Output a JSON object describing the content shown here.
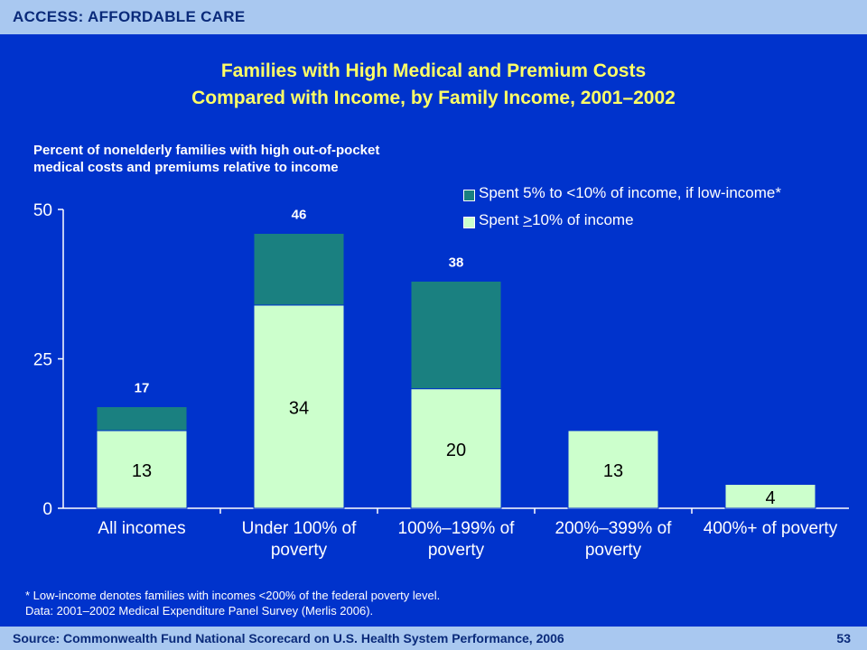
{
  "header": {
    "section_label": "ACCESS: AFFORDABLE CARE"
  },
  "title_line1": "Families with High Medical and Premium Costs",
  "title_line2": "Compared with Income, by Family Income, 2001–2002",
  "subtitle_line1": "Percent of nonelderly families with high out-of-pocket",
  "subtitle_line2": "medical costs and premiums relative to income",
  "legend": {
    "item1": "Spent 5% to <10% of income, if low-income*",
    "item2_prefix": "Spent ",
    "item2_underlined": ">",
    "item2_suffix": "10% of income"
  },
  "footnote_line1": "* Low-income denotes families with incomes <200% of the federal poverty level.",
  "footnote_line2": "Data: 2001–2002 Medical Expenditure Panel Survey (Merlis 2006).",
  "footer": {
    "source": "Source: Commonwealth Fund National Scorecard on U.S. Health System Performance, 2006",
    "page_number": "53"
  },
  "colors": {
    "background": "#0033cc",
    "bar_bottom": "#ccffcc",
    "bar_top": "#1a8080",
    "title": "#ffff66",
    "bar_bar_border": "#0033cc"
  },
  "chart_data": {
    "type": "bar",
    "stacked": true,
    "categories": [
      [
        "All incomes"
      ],
      [
        "Under 100% of",
        "poverty"
      ],
      [
        "100%–199% of",
        "poverty"
      ],
      [
        "200%–399% of",
        "poverty"
      ],
      [
        "400%+ of poverty"
      ]
    ],
    "series": [
      {
        "name": "Spent >10% of income",
        "values": [
          13,
          34,
          20,
          13,
          4
        ],
        "color": "#ccffcc"
      },
      {
        "name": "Spent 5% to <10% of income, if low-income*",
        "values": [
          4,
          12,
          18,
          null,
          null
        ],
        "color": "#1a8080"
      }
    ],
    "bottom_labels": [
      "13",
      "34",
      "20",
      "13",
      "4"
    ],
    "total_labels": [
      "17",
      "46",
      "38",
      "",
      ""
    ],
    "totals": [
      17,
      46,
      38,
      13,
      4
    ],
    "ylim": [
      0,
      50
    ],
    "yticks": [
      "0",
      "25",
      "50"
    ],
    "ytick_values": [
      0,
      25,
      50
    ],
    "legend_position": "top-right",
    "grid": false
  }
}
